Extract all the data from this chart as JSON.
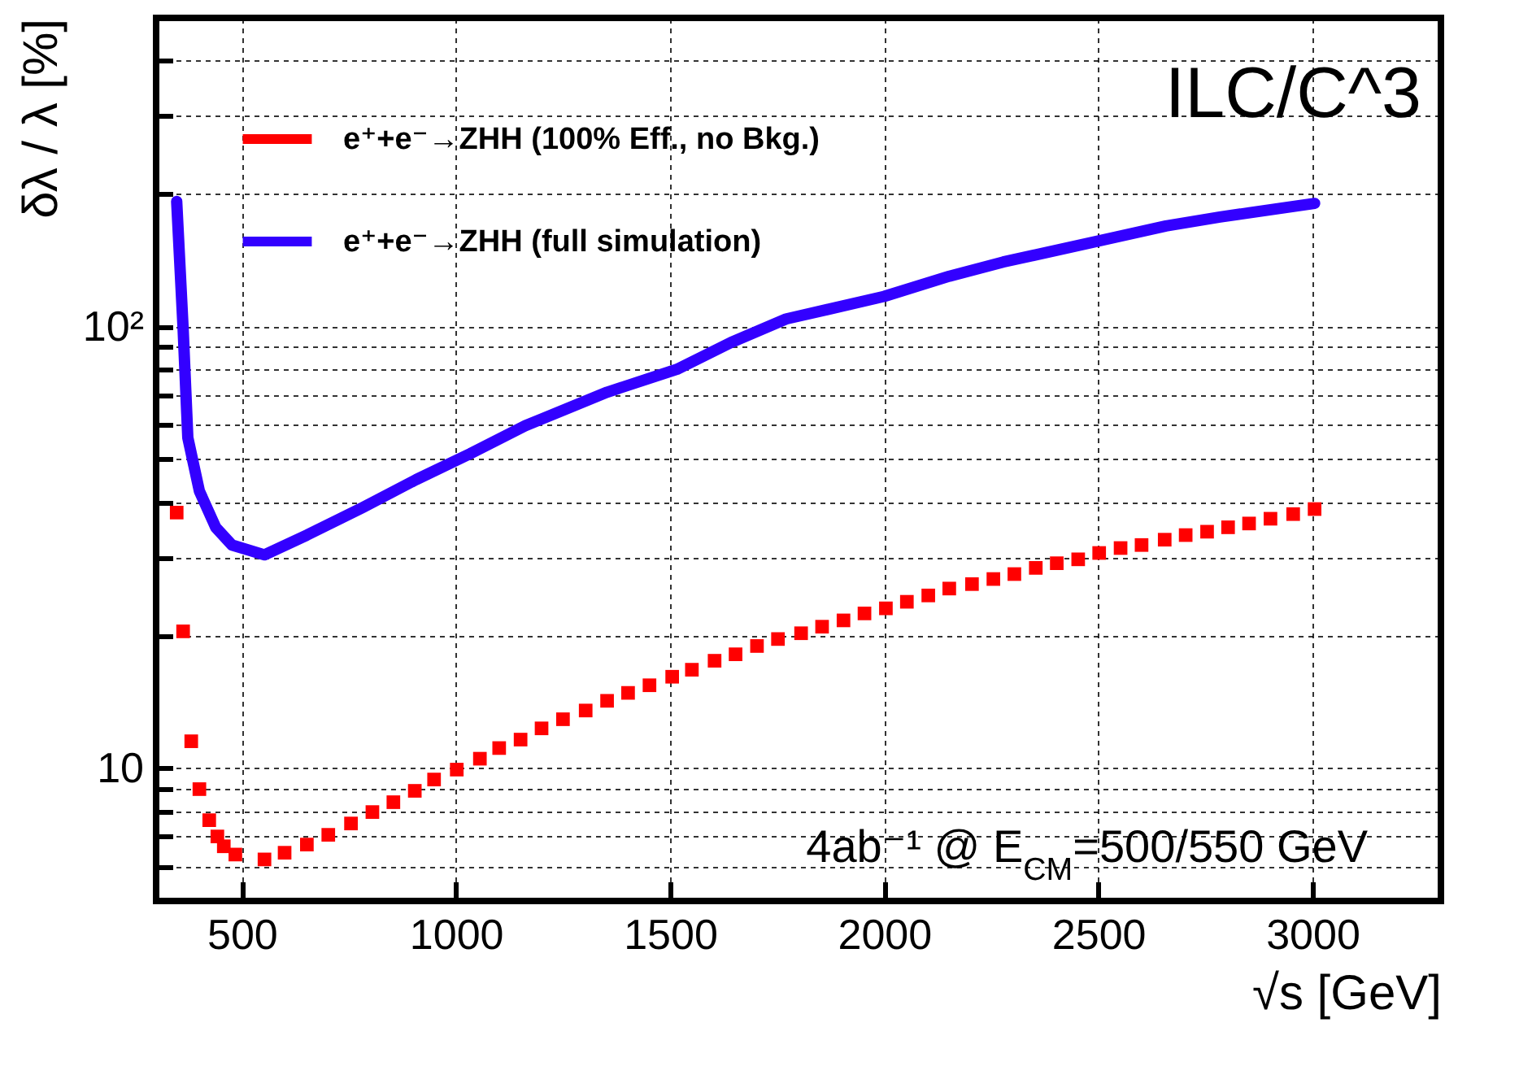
{
  "chart_data": {
    "type": "line",
    "xlabel": "√s [GeV]",
    "ylabel": "δλ / λ [%]",
    "xlim": [
      300,
      3300
    ],
    "xticks": [
      500,
      1000,
      1500,
      2000,
      2500,
      3000
    ],
    "ylim": [
      5,
      500
    ],
    "yticks": [
      {
        "value": 6,
        "label": null
      },
      {
        "value": 7,
        "label": null
      },
      {
        "value": 8,
        "label": null
      },
      {
        "value": 9,
        "label": null
      },
      10,
      {
        "value": 20,
        "label": null
      },
      {
        "value": 30,
        "label": null
      },
      {
        "value": 40,
        "label": null
      },
      {
        "value": 50,
        "label": null
      },
      {
        "value": 60,
        "label": null
      },
      {
        "value": 70,
        "label": null
      },
      {
        "value": 80,
        "label": null
      },
      {
        "value": 90,
        "label": null
      },
      {
        "value": 100,
        "label": "10²"
      },
      {
        "value": 200,
        "label": null
      },
      {
        "value": 300,
        "label": null
      },
      {
        "value": 400,
        "label": null
      }
    ],
    "log": "y",
    "grid": true,
    "legend": "top left",
    "series": [
      {
        "name": "e⁺+e⁻→ZHH (100% Eff., no Bkg.)",
        "type": "scatter",
        "marker": "square",
        "color": "#ff0000",
        "x": [
          348,
          363,
          382,
          401,
          424,
          443,
          458,
          485,
          553,
          600,
          652,
          702,
          755,
          805,
          854,
          904,
          949,
          1002,
          1056,
          1101,
          1151,
          1200,
          1250,
          1303,
          1353,
          1402,
          1452,
          1505,
          1551,
          1604,
          1653,
          1703,
          1752,
          1806,
          1855,
          1905,
          1954,
          2004,
          2053,
          2103,
          2152,
          2205,
          2255,
          2304,
          2354,
          2403,
          2453,
          2502,
          2552,
          2601,
          2655,
          2704,
          2754,
          2803,
          2852,
          2902,
          2955,
          3005
        ],
        "values": [
          37.9,
          20.4,
          11.5,
          8.96,
          7.62,
          7.0,
          6.65,
          6.37,
          6.21,
          6.43,
          6.71,
          7.06,
          7.49,
          7.95,
          8.37,
          8.88,
          9.42,
          9.92,
          10.5,
          11.1,
          11.6,
          12.3,
          12.9,
          13.5,
          14.2,
          14.8,
          15.4,
          16.1,
          16.7,
          17.5,
          18.1,
          18.9,
          19.6,
          20.2,
          20.9,
          21.6,
          22.4,
          23.0,
          23.8,
          24.6,
          25.5,
          26.1,
          26.8,
          27.5,
          28.4,
          29.1,
          29.7,
          30.7,
          31.5,
          32.0,
          32.9,
          33.7,
          34.3,
          35.1,
          35.8,
          36.7,
          37.6,
          38.6
        ]
      },
      {
        "name": "e⁺+e⁻→ZHH (full simulation)",
        "color": "#3300ff",
        "x": [
          348,
          363,
          374,
          401,
          439,
          477,
          553,
          652,
          782,
          907,
          1033,
          1162,
          1353,
          1516,
          1642,
          1771,
          2000,
          2152,
          2278,
          2498,
          2658,
          2784,
          3005
        ],
        "values": [
          192,
          99,
          56,
          42.4,
          35.1,
          32,
          30.4,
          33.7,
          38.9,
          45.0,
          51.5,
          59.6,
          71,
          80,
          92,
          104,
          117,
          130,
          140,
          156,
          169,
          177,
          190
        ]
      }
    ],
    "annotations": [
      "ILC/C^3",
      "4ab⁻¹ @ E$_{CM}$=500/550 GeV"
    ]
  }
}
